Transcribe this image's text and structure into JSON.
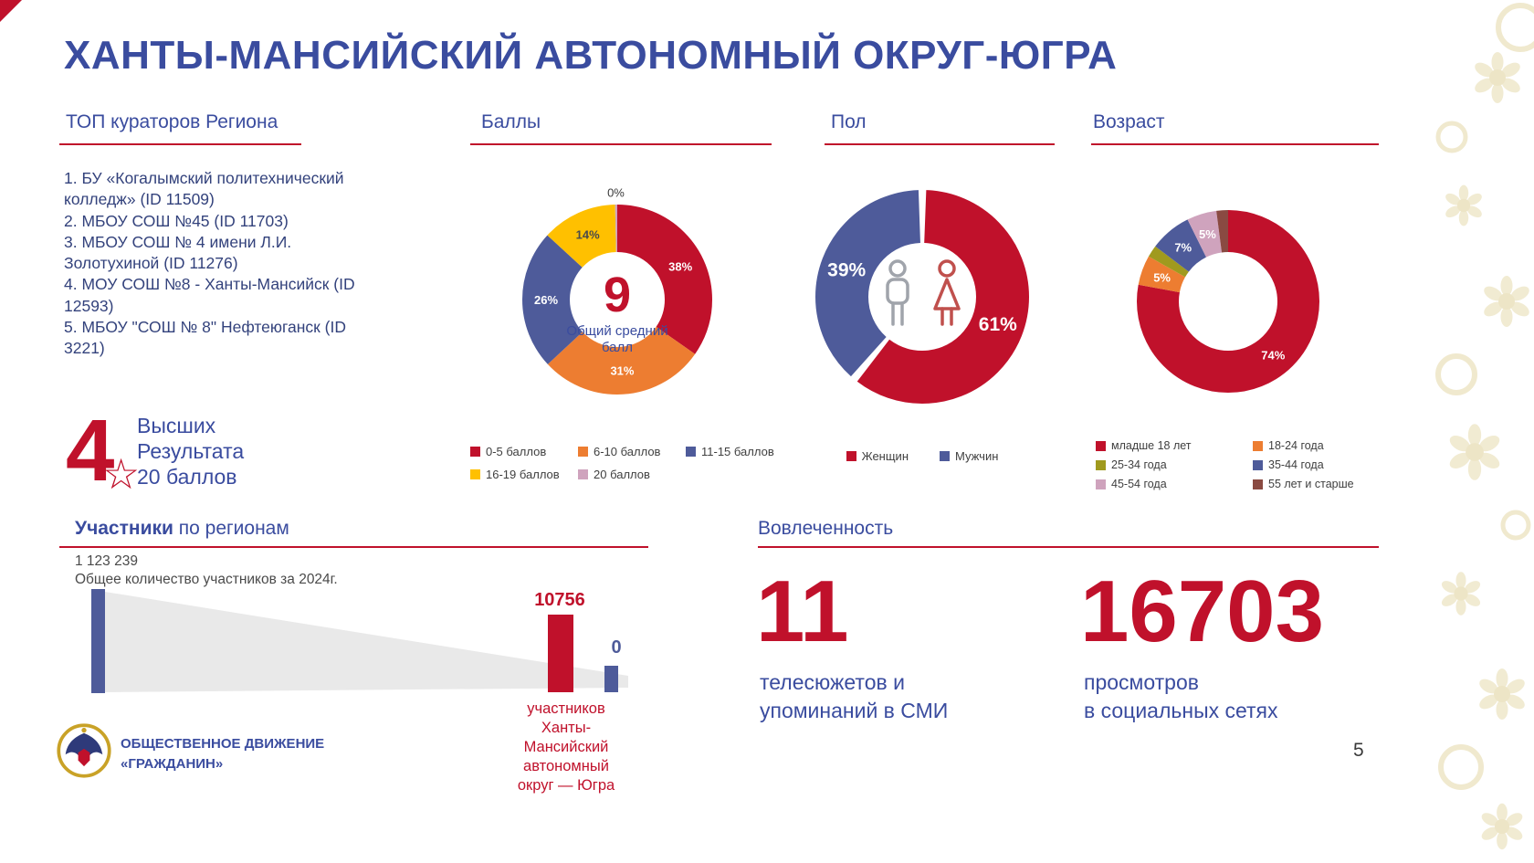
{
  "page": {
    "title": "ХАНТЫ-МАНСИЙСКИЙ АВТОНОМНЫЙ ОКРУГ-ЮГРА",
    "page_number": "5"
  },
  "colors": {
    "accent_red": "#C0112B",
    "heading_blue": "#3A4C9F",
    "text_navy": "#33427C",
    "orange": "#ED7D31",
    "slate_blue": "#4E5B9A",
    "yellow": "#FFC000",
    "pink": "#CFA3BD",
    "olive": "#A09A1E",
    "brown": "#8A4A42",
    "funnel_gray": "#E9E9E9"
  },
  "curators": {
    "title": "ТОП кураторов Региона",
    "items": [
      "1. БУ «Когалымский политехнический колледж» (ID 11509)",
      "2. МБОУ СОШ №45 (ID 11703)",
      "3. МБОУ СОШ № 4 имени Л.И. Золотухиной (ID 11276)",
      "4. МОУ СОШ №8 - Ханты-Мансийск (ID 12593)",
      "5. МБОУ \"СОШ № 8\" Нефтеюганск (ID 3221)"
    ]
  },
  "highlight": {
    "number": "4",
    "lines": [
      "Высших",
      "Результата",
      "20 баллов"
    ]
  },
  "chart_data": [
    {
      "type": "pie",
      "title": "Баллы",
      "center_value": "9",
      "center_label": "Общий средний балл",
      "legend_position": "bottom",
      "segments": [
        {
          "label": "0-5 баллов",
          "value": 38,
          "color": "#C0112B"
        },
        {
          "label": "6-10 баллов",
          "value": 31,
          "color": "#ED7D31"
        },
        {
          "label": "11-15 баллов",
          "value": 26,
          "color": "#4E5B9A"
        },
        {
          "label": "16-19 баллов",
          "value": 14,
          "color": "#FFC000",
          "label_color": "#4A4A4A"
        },
        {
          "label": "20 баллов",
          "value": 0,
          "color": "#CFA3BD",
          "label_outside": true,
          "label_color": "#3A3A3A"
        }
      ]
    },
    {
      "type": "pie",
      "title": "Пол",
      "legend_position": "bottom",
      "segments": [
        {
          "label": "Женщин",
          "value": 61,
          "color": "#C0112B"
        },
        {
          "label": "Мужчин",
          "value": 39,
          "color": "#4E5B9A"
        }
      ]
    },
    {
      "type": "pie",
      "title": "Возраст",
      "legend_position": "bottom",
      "segments": [
        {
          "label": "младше 18 лет",
          "value": 74,
          "color": "#C0112B"
        },
        {
          "label": "18-24 года",
          "value": 5,
          "color": "#ED7D31"
        },
        {
          "label": "25-34 года",
          "value": 2,
          "color": "#A09A1E",
          "show_label": false
        },
        {
          "label": "35-44 года",
          "value": 7,
          "color": "#4E5B9A"
        },
        {
          "label": "45-54 года",
          "value": 5,
          "color": "#CFA3BD"
        },
        {
          "label": "55 лет и старше",
          "value": 2,
          "color": "#8A4A42",
          "show_label": false
        }
      ]
    },
    {
      "type": "bar",
      "title_bold": "Участники",
      "title_rest": " по регионам",
      "bars": [
        {
          "name": "Общее количество участников за 2024г.",
          "value": 1123239,
          "display": "1 123 239",
          "color": "#4E5B9A"
        },
        {
          "name": "участников Ханты-Мансийский автономный округ — Югра",
          "value": 10756,
          "display": "10756",
          "color": "#C0112B"
        },
        {
          "name": "",
          "value": 0,
          "display": "0",
          "color": "#4E5B9A"
        }
      ],
      "caption_lines": [
        "участников",
        "Ханты-",
        "Мансийский",
        "автономный",
        "округ — Югра"
      ]
    }
  ],
  "engagement": {
    "title": "Вовлеченность",
    "stats": [
      {
        "value": "11",
        "caption_lines": [
          "телесюжетов и",
          "упоминаний в СМИ"
        ]
      },
      {
        "value": "16703",
        "caption_lines": [
          "просмотров",
          "в социальных сетях"
        ]
      }
    ]
  },
  "footer": {
    "movement_lines": [
      "ОБЩЕСТВЕННОЕ ДВИЖЕНИЕ",
      "«ГРАЖДАНИН»"
    ]
  }
}
